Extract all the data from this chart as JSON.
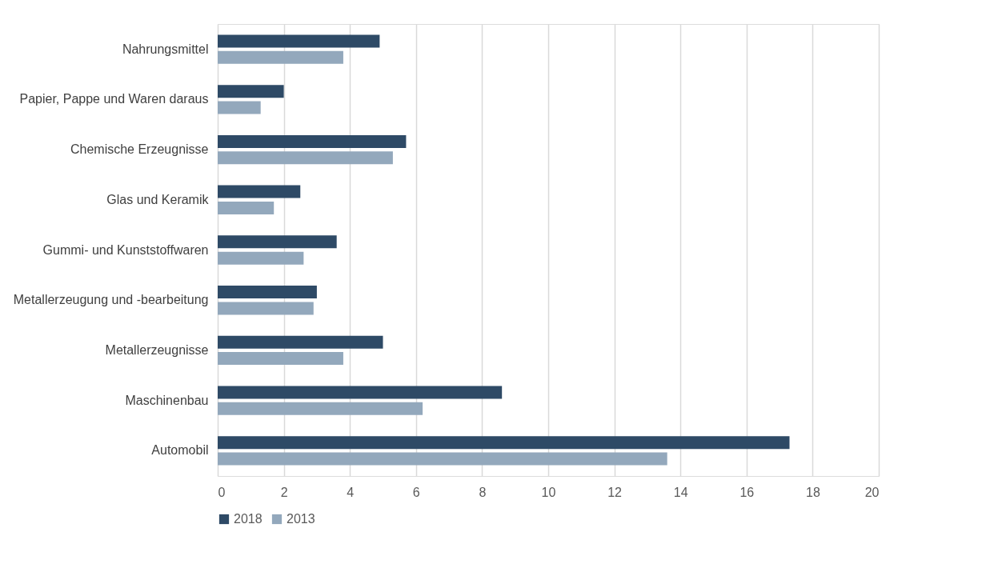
{
  "chart_data": {
    "type": "bar",
    "orientation": "horizontal",
    "categories": [
      "Nahrungsmittel",
      "Papier, Pappe und Waren daraus",
      "Chemische Erzeugnisse",
      "Glas und Keramik",
      "Gummi- und Kunststoffwaren",
      "Metallerzeugung und -bearbeitung",
      "Metallerzeugnisse",
      "Maschinenbau",
      "Automobil"
    ],
    "series": [
      {
        "name": "2018",
        "color": "#2e4a66",
        "values": [
          4.9,
          2.0,
          5.7,
          2.5,
          3.6,
          3.0,
          5.0,
          8.6,
          17.3
        ]
      },
      {
        "name": "2013",
        "color": "#93a8bc",
        "values": [
          3.8,
          1.3,
          5.3,
          1.7,
          2.6,
          2.9,
          3.8,
          6.2,
          13.6
        ]
      }
    ],
    "xlim": [
      0,
      20
    ],
    "xticks": [
      0,
      2,
      4,
      6,
      8,
      10,
      12,
      14,
      16,
      18,
      20
    ],
    "grid": "x",
    "legend": "bottom"
  }
}
